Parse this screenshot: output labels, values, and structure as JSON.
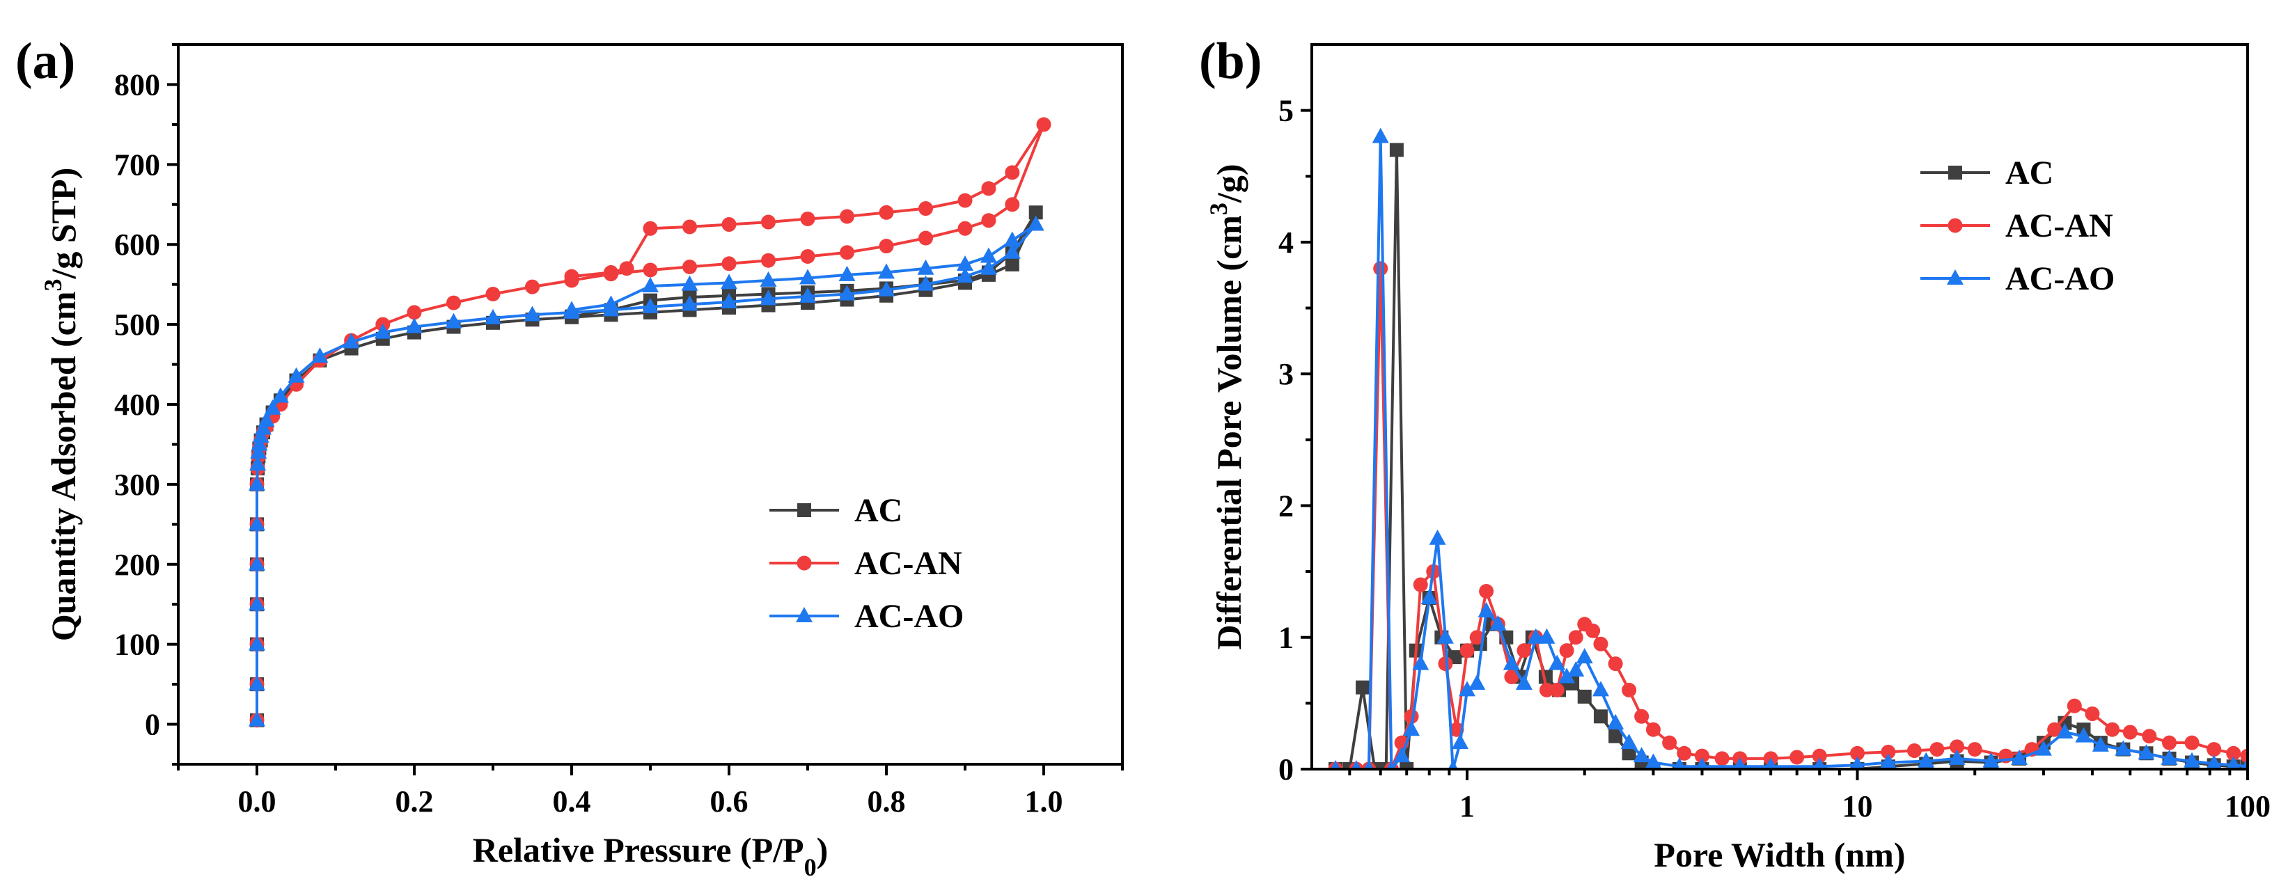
{
  "colors": {
    "AC": "#3f3f3f",
    "AC-AN": "#f03c3c",
    "AC-AO": "#1e78f0"
  },
  "chart_data": [
    {
      "type": "line",
      "panel_label": "(a)",
      "xlabel": "Relative Pressure (P/P",
      "xlabel_sub": "0",
      "xlabel_tail": ")",
      "ylabel": "Quantity Adsorbed (cm",
      "ylabel_sup": "3",
      "ylabel_tail": "/g STP)",
      "xlim": [
        -0.1,
        1.1
      ],
      "ylim": [
        -50,
        850
      ],
      "xticks": [
        0.0,
        0.2,
        0.4,
        0.6,
        0.8,
        1.0
      ],
      "xtick_labels": [
        "0.0",
        "0.2",
        "0.4",
        "0.6",
        "0.8",
        "1.0"
      ],
      "yticks": [
        0,
        100,
        200,
        300,
        400,
        500,
        600,
        700,
        800
      ],
      "ytick_labels": [
        "0",
        "100",
        "200",
        "300",
        "400",
        "500",
        "600",
        "700",
        "800"
      ],
      "legend_position": "lower-right",
      "series": [
        {
          "name": "AC",
          "marker": "square",
          "x": [
            0,
            0,
            0,
            0,
            0,
            0,
            0,
            0.001,
            0.002,
            0.003,
            0.005,
            0.008,
            0.012,
            0.02,
            0.03,
            0.05,
            0.08,
            0.12,
            0.16,
            0.2,
            0.25,
            0.3,
            0.35,
            0.4,
            0.45,
            0.5,
            0.55,
            0.6,
            0.65,
            0.7,
            0.75,
            0.8,
            0.85,
            0.9,
            0.93,
            0.96,
            0.99,
            0.96,
            0.93,
            0.9,
            0.85,
            0.8,
            0.75,
            0.7,
            0.65,
            0.6,
            0.55,
            0.5,
            0.45,
            0.4
          ],
          "y": [
            5,
            50,
            100,
            150,
            200,
            250,
            300,
            320,
            335,
            345,
            355,
            365,
            375,
            390,
            405,
            430,
            455,
            470,
            482,
            490,
            497,
            502,
            506,
            509,
            512,
            515,
            518,
            521,
            524,
            527,
            531,
            536,
            543,
            552,
            562,
            575,
            640,
            590,
            565,
            555,
            550,
            545,
            542,
            540,
            538,
            536,
            534,
            530,
            518,
            510
          ]
        },
        {
          "name": "AC-AN",
          "marker": "circle",
          "x": [
            0,
            0,
            0,
            0,
            0,
            0,
            0,
            0.001,
            0.002,
            0.003,
            0.005,
            0.008,
            0.012,
            0.02,
            0.03,
            0.05,
            0.08,
            0.12,
            0.16,
            0.2,
            0.25,
            0.3,
            0.35,
            0.4,
            0.45,
            0.5,
            0.55,
            0.6,
            0.65,
            0.7,
            0.75,
            0.8,
            0.85,
            0.9,
            0.93,
            0.96,
            1.0,
            0.96,
            0.93,
            0.9,
            0.85,
            0.8,
            0.75,
            0.7,
            0.65,
            0.6,
            0.55,
            0.5,
            0.47,
            0.45,
            0.4
          ],
          "y": [
            5,
            50,
            100,
            150,
            200,
            250,
            300,
            320,
            335,
            345,
            355,
            365,
            372,
            385,
            400,
            425,
            455,
            480,
            500,
            515,
            527,
            538,
            547,
            555,
            563,
            568,
            572,
            576,
            580,
            585,
            590,
            598,
            608,
            620,
            630,
            650,
            750,
            690,
            670,
            655,
            645,
            640,
            635,
            632,
            628,
            625,
            622,
            620,
            570,
            565,
            560
          ]
        },
        {
          "name": "AC-AO",
          "marker": "triangle",
          "x": [
            0,
            0,
            0,
            0,
            0,
            0,
            0,
            0.001,
            0.002,
            0.003,
            0.005,
            0.008,
            0.012,
            0.02,
            0.03,
            0.05,
            0.08,
            0.12,
            0.16,
            0.2,
            0.25,
            0.3,
            0.35,
            0.4,
            0.45,
            0.5,
            0.55,
            0.6,
            0.65,
            0.7,
            0.75,
            0.8,
            0.85,
            0.9,
            0.93,
            0.96,
            0.99,
            0.96,
            0.93,
            0.9,
            0.85,
            0.8,
            0.75,
            0.7,
            0.65,
            0.6,
            0.55,
            0.5,
            0.45,
            0.4
          ],
          "y": [
            5,
            50,
            100,
            150,
            200,
            250,
            300,
            325,
            340,
            350,
            360,
            370,
            380,
            395,
            410,
            435,
            460,
            478,
            490,
            497,
            503,
            508,
            512,
            515,
            518,
            522,
            525,
            528,
            532,
            535,
            538,
            543,
            550,
            560,
            570,
            590,
            625,
            605,
            585,
            575,
            570,
            565,
            562,
            558,
            555,
            552,
            550,
            548,
            525,
            518
          ]
        }
      ]
    },
    {
      "type": "line",
      "panel_label": "(b)",
      "xlabel": "Pore Width (nm)",
      "ylabel": "Differential Pore Volume (cm",
      "ylabel_sup": "3",
      "ylabel_tail": "/g)",
      "xscale": "log",
      "xlim": [
        0.4,
        100
      ],
      "ylim": [
        0,
        5.5
      ],
      "xticks": [
        1,
        10,
        100
      ],
      "xtick_labels": [
        "1",
        "10",
        "100"
      ],
      "yticks": [
        0,
        1,
        2,
        3,
        4,
        5
      ],
      "ytick_labels": [
        "0",
        "1",
        "2",
        "3",
        "4",
        "5"
      ],
      "legend_position": "top-right",
      "series": [
        {
          "name": "AC",
          "marker": "square",
          "x": [
            0.46,
            0.5,
            0.54,
            0.58,
            0.62,
            0.66,
            0.7,
            0.74,
            0.8,
            0.86,
            0.93,
            1.0,
            1.08,
            1.16,
            1.26,
            1.36,
            1.47,
            1.59,
            1.72,
            1.86,
            2.0,
            2.2,
            2.4,
            2.6,
            2.8,
            3.0,
            3.5,
            4,
            5,
            6,
            8,
            10,
            12,
            15,
            18,
            22,
            26,
            30,
            34,
            38,
            42,
            48,
            55,
            63,
            72,
            82,
            92,
            100
          ],
          "y": [
            0,
            0,
            0.62,
            0,
            0,
            4.7,
            0,
            0.9,
            1.3,
            1.0,
            0.85,
            0.9,
            0.95,
            1.1,
            1.0,
            0.7,
            1.0,
            0.7,
            0.6,
            0.65,
            0.55,
            0.4,
            0.25,
            0.12,
            0.05,
            0,
            0,
            0,
            0,
            0,
            0,
            0,
            0.02,
            0.04,
            0.06,
            0.05,
            0.08,
            0.2,
            0.35,
            0.3,
            0.2,
            0.15,
            0.12,
            0.08,
            0.05,
            0.03,
            0.02,
            0.02
          ]
        },
        {
          "name": "AC-AN",
          "marker": "circle",
          "x": [
            0.46,
            0.52,
            0.56,
            0.6,
            0.64,
            0.68,
            0.72,
            0.76,
            0.82,
            0.88,
            0.94,
            1.0,
            1.06,
            1.12,
            1.2,
            1.3,
            1.4,
            1.5,
            1.6,
            1.7,
            1.8,
            1.9,
            2.0,
            2.1,
            2.2,
            2.4,
            2.6,
            2.8,
            3.0,
            3.3,
            3.6,
            4,
            4.5,
            5,
            6,
            7,
            8,
            10,
            12,
            14,
            16,
            18,
            20,
            24,
            28,
            32,
            36,
            40,
            45,
            50,
            56,
            63,
            72,
            82,
            92,
            100
          ],
          "y": [
            0,
            0,
            0,
            3.8,
            0,
            0.2,
            0.4,
            1.4,
            1.5,
            0.8,
            0.3,
            0.9,
            1.0,
            1.35,
            1.1,
            0.7,
            0.9,
            1.0,
            0.6,
            0.6,
            0.9,
            1.0,
            1.1,
            1.05,
            0.95,
            0.8,
            0.6,
            0.4,
            0.3,
            0.2,
            0.12,
            0.1,
            0.08,
            0.08,
            0.08,
            0.09,
            0.1,
            0.12,
            0.13,
            0.14,
            0.15,
            0.17,
            0.15,
            0.1,
            0.15,
            0.3,
            0.48,
            0.42,
            0.3,
            0.28,
            0.25,
            0.2,
            0.2,
            0.15,
            0.12,
            0.1
          ]
        },
        {
          "name": "AC-AO",
          "marker": "triangle",
          "x": [
            0.46,
            0.52,
            0.56,
            0.6,
            0.64,
            0.68,
            0.72,
            0.76,
            0.8,
            0.84,
            0.88,
            0.92,
            0.96,
            1.0,
            1.06,
            1.12,
            1.2,
            1.3,
            1.4,
            1.5,
            1.6,
            1.7,
            1.8,
            1.9,
            2.0,
            2.2,
            2.4,
            2.6,
            2.8,
            3.0,
            3.5,
            4,
            5,
            6,
            8,
            10,
            12,
            15,
            18,
            22,
            26,
            30,
            34,
            38,
            42,
            48,
            55,
            63,
            72,
            82,
            92,
            100
          ],
          "y": [
            0,
            0,
            0,
            4.8,
            0,
            0.1,
            0.3,
            0.8,
            1.3,
            1.75,
            1.0,
            0,
            0.2,
            0.6,
            0.65,
            1.2,
            1.1,
            0.8,
            0.65,
            1.0,
            1.0,
            0.8,
            0.7,
            0.75,
            0.85,
            0.6,
            0.35,
            0.2,
            0.1,
            0.05,
            0.02,
            0.02,
            0.02,
            0.02,
            0.02,
            0.03,
            0.05,
            0.06,
            0.08,
            0.06,
            0.08,
            0.15,
            0.28,
            0.25,
            0.18,
            0.15,
            0.12,
            0.08,
            0.06,
            0.04,
            0.03,
            0.02
          ]
        }
      ]
    }
  ]
}
